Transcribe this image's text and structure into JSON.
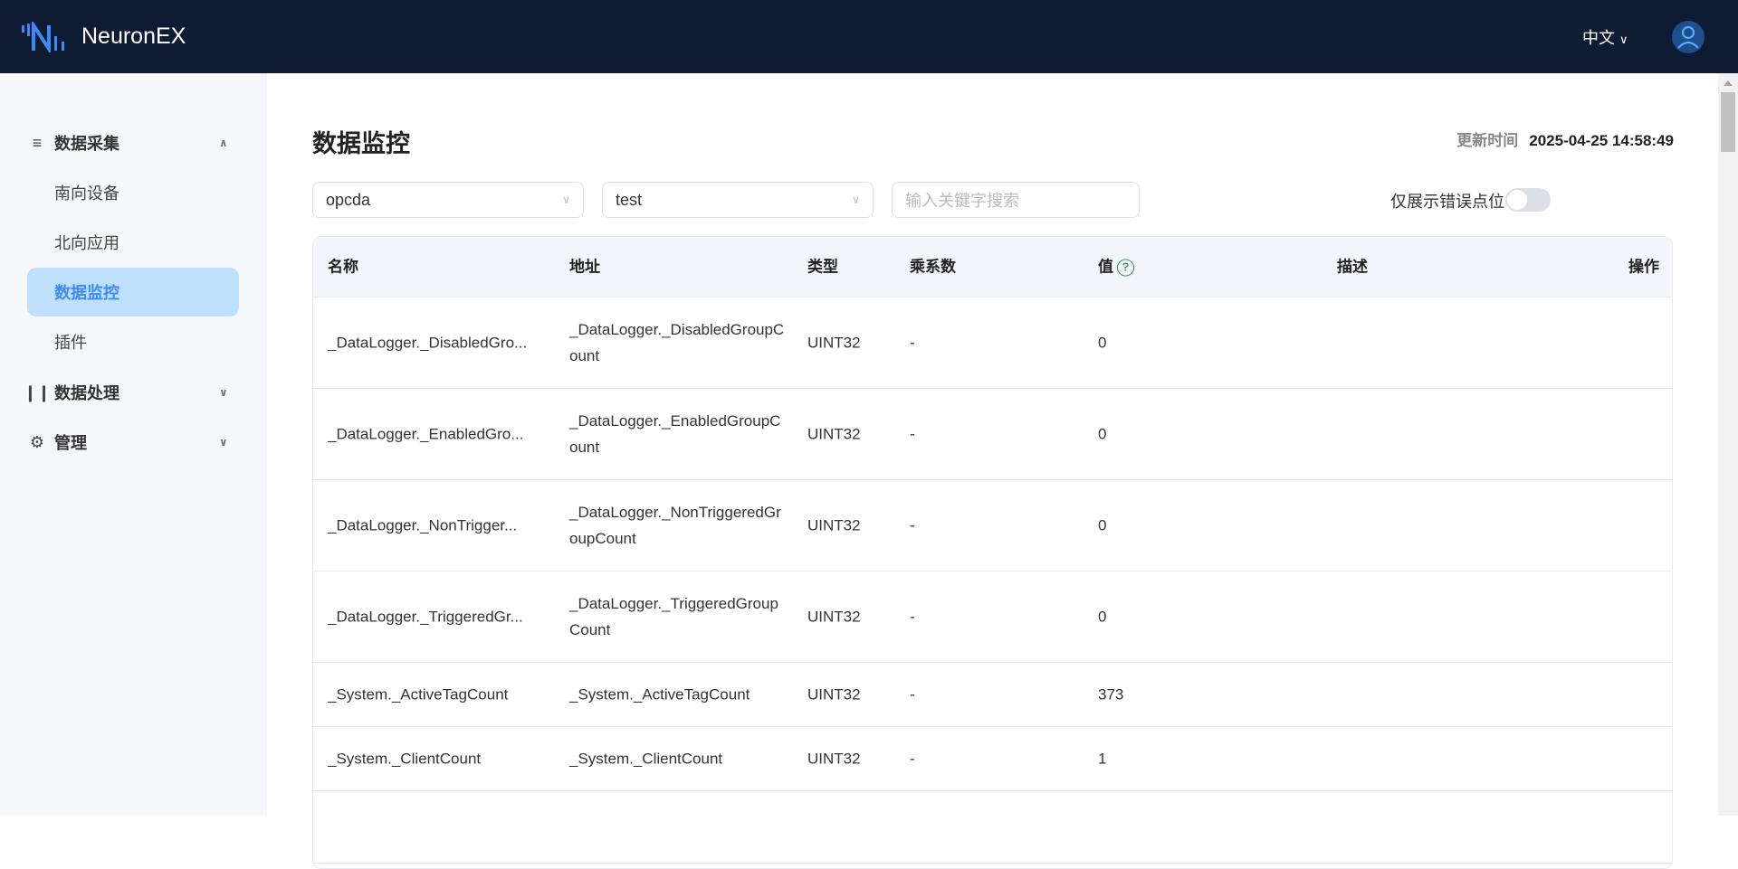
{
  "header": {
    "brand": "NeuronEX",
    "language": "中文"
  },
  "sidebar": {
    "groups": [
      {
        "label": "数据采集",
        "icon": "data-collection-icon",
        "expanded": true,
        "items": [
          {
            "label": "南向设备"
          },
          {
            "label": "北向应用"
          },
          {
            "label": "数据监控",
            "active": true
          },
          {
            "label": "插件"
          }
        ]
      },
      {
        "label": "数据处理",
        "icon": "data-processing-icon",
        "expanded": false
      },
      {
        "label": "管理",
        "icon": "gear-icon",
        "expanded": false
      }
    ]
  },
  "main": {
    "title": "数据监控",
    "update_label": "更新时间",
    "update_time": "2025-04-25 14:58:49",
    "filters": {
      "node": "opcda",
      "group": "test",
      "search_placeholder": "输入关键字搜索",
      "error_only_label": "仅展示错误点位",
      "error_only": false
    },
    "table": {
      "columns": [
        "名称",
        "地址",
        "类型",
        "乘系数",
        "值",
        "描述",
        "操作"
      ],
      "rows": [
        {
          "name": "_DataLogger._DisabledGro...",
          "address": "_DataLogger._DisabledGroupCount",
          "type": "UINT32",
          "multiplier": "-",
          "value": "0",
          "desc": ""
        },
        {
          "name": "_DataLogger._EnabledGro...",
          "address": "_DataLogger._EnabledGroupCount",
          "type": "UINT32",
          "multiplier": "-",
          "value": "0",
          "desc": ""
        },
        {
          "name": "_DataLogger._NonTrigger...",
          "address": "_DataLogger._NonTriggeredGroupCount",
          "type": "UINT32",
          "multiplier": "-",
          "value": "0",
          "desc": ""
        },
        {
          "name": "_DataLogger._TriggeredGr...",
          "address": "_DataLogger._TriggeredGroupCount",
          "type": "UINT32",
          "multiplier": "-",
          "value": "0",
          "desc": ""
        },
        {
          "name": "_System._ActiveTagCount",
          "address": "_System._ActiveTagCount",
          "type": "UINT32",
          "multiplier": "-",
          "value": "373",
          "desc": ""
        },
        {
          "name": "_System._ClientCount",
          "address": "_System._ClientCount",
          "type": "UINT32",
          "multiplier": "-",
          "value": "1",
          "desc": ""
        }
      ]
    }
  },
  "colors": {
    "header_bg": "#0f1a33",
    "accent": "#3d8bf2",
    "active_bg": "#bfe0fd"
  }
}
